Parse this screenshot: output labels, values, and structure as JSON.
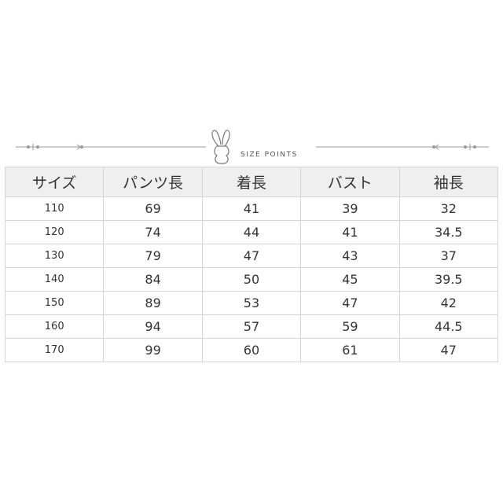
{
  "header_label": "SIZE POINTS",
  "columns": [
    "サイズ",
    "パンツ長",
    "着長",
    "バスト",
    "袖長"
  ],
  "rows": [
    [
      "110",
      "69",
      "41",
      "39",
      "32"
    ],
    [
      "120",
      "74",
      "44",
      "41",
      "34.5"
    ],
    [
      "130",
      "79",
      "47",
      "43",
      "37"
    ],
    [
      "140",
      "84",
      "50",
      "45",
      "39.5"
    ],
    [
      "150",
      "89",
      "53",
      "47",
      "42"
    ],
    [
      "160",
      "94",
      "57",
      "59",
      "44.5"
    ],
    [
      "170",
      "99",
      "60",
      "61",
      "47"
    ]
  ],
  "colors": {
    "header_bg": "#efefef",
    "border": "#d4d4d4",
    "text": "#333333"
  }
}
